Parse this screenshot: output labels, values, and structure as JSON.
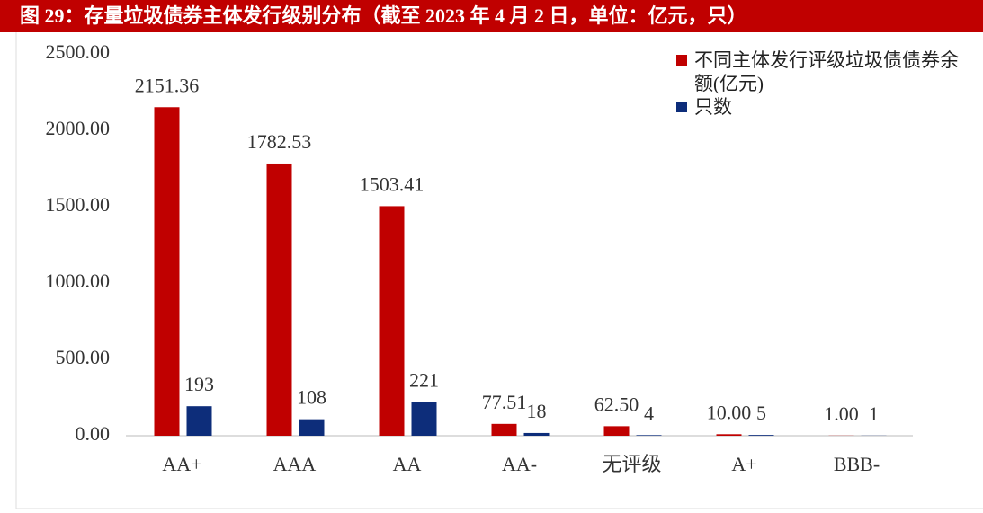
{
  "chart_data": {
    "type": "bar",
    "title": "图 29：存量垃圾债券主体发行级别分布（截至 2023 年 4 月 2 日，单位：亿元，只）",
    "categories": [
      "AA+",
      "AAA",
      "AA",
      "AA-",
      "无评级",
      "A+",
      "BBB-"
    ],
    "series": [
      {
        "name": "不同主体发行评级垃圾债债券余额(亿元)",
        "color": "#c00000",
        "values": [
          2151.36,
          1782.53,
          1503.41,
          77.51,
          62.5,
          10,
          1
        ],
        "value_labels": [
          "2151.36",
          "1782.53",
          "1503.41",
          "77.51",
          "62.50",
          "10.00",
          "1.00"
        ]
      },
      {
        "name": "只数",
        "color": "#0d2d7a",
        "values": [
          193,
          108,
          221,
          18,
          4,
          5,
          1
        ]
      }
    ],
    "ylim": [
      0,
      2500
    ],
    "yticks": [
      {
        "value": 0,
        "label": "0.00"
      },
      {
        "value": 500,
        "label": "500.00"
      },
      {
        "value": 1000,
        "label": "1000.00"
      },
      {
        "value": 1500,
        "label": "1500.00"
      },
      {
        "value": 2000,
        "label": "2000.00"
      },
      {
        "value": 2500,
        "label": "2500.00"
      }
    ],
    "legend": "upper right"
  }
}
